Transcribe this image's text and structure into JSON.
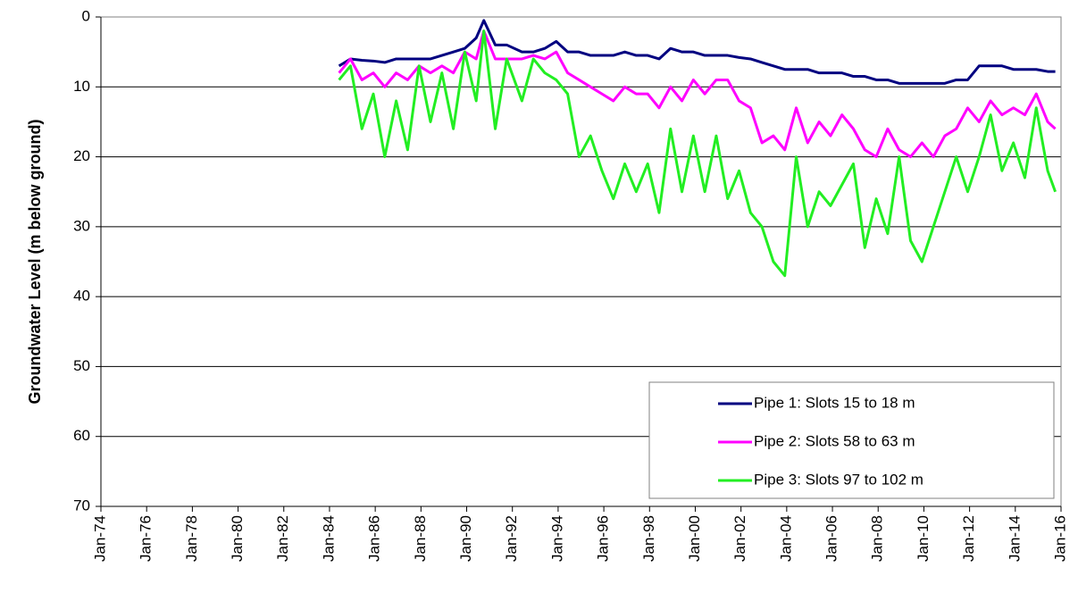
{
  "chart_data": {
    "type": "line",
    "y_label": "Groundwater Level (m below ground)",
    "x": [
      "1984-06",
      "1984-12",
      "1985-06",
      "1985-12",
      "1986-06",
      "1986-12",
      "1987-06",
      "1987-12",
      "1988-06",
      "1988-12",
      "1989-06",
      "1989-12",
      "1990-06",
      "1990-10",
      "1991-04",
      "1991-10",
      "1992-06",
      "1992-12",
      "1993-06",
      "1993-12",
      "1994-06",
      "1994-12",
      "1995-06",
      "1995-12",
      "1996-06",
      "1996-12",
      "1997-06",
      "1997-12",
      "1998-06",
      "1998-12",
      "1999-06",
      "1999-12",
      "2000-06",
      "2000-12",
      "2001-06",
      "2001-12",
      "2002-06",
      "2002-12",
      "2003-06",
      "2003-12",
      "2004-06",
      "2004-12",
      "2005-06",
      "2005-12",
      "2006-06",
      "2006-12",
      "2007-06",
      "2007-12",
      "2008-06",
      "2008-12",
      "2009-06",
      "2009-12",
      "2010-06",
      "2010-12",
      "2011-06",
      "2011-12",
      "2012-06",
      "2012-12",
      "2013-06",
      "2013-12",
      "2014-06",
      "2014-12",
      "2015-06",
      "2015-10"
    ],
    "series": [
      {
        "name": "Pipe 1: Slots 15 to 18 m",
        "color": "#000080",
        "values": [
          7,
          6,
          6.2,
          6.3,
          6.5,
          6,
          6,
          6,
          6,
          5.5,
          5,
          4.5,
          3,
          0.5,
          4,
          4,
          5,
          5,
          4.5,
          3.5,
          5,
          5,
          5.5,
          5.5,
          5.5,
          5,
          5.5,
          5.5,
          6,
          4.5,
          5,
          5,
          5.5,
          5.5,
          5.5,
          5.8,
          6,
          6.5,
          7,
          7.5,
          7.5,
          7.5,
          8,
          8,
          8,
          8.5,
          8.5,
          9,
          9,
          9.5,
          9.5,
          9.5,
          9.5,
          9.5,
          9,
          9,
          7,
          7,
          7,
          7.5,
          7.5,
          7.5,
          7.8,
          7.8
        ]
      },
      {
        "name": "Pipe 2: Slots 58 to 63 m",
        "color": "#ff00ff",
        "values": [
          8,
          6,
          9,
          8,
          10,
          8,
          9,
          7,
          8,
          7,
          8,
          5,
          6,
          2,
          6,
          6,
          6,
          5.5,
          6,
          5,
          8,
          9,
          10,
          11,
          12,
          10,
          11,
          11,
          13,
          10,
          12,
          9,
          11,
          9,
          9,
          12,
          13,
          18,
          17,
          19,
          13,
          18,
          15,
          17,
          14,
          16,
          19,
          20,
          16,
          19,
          20,
          18,
          20,
          17,
          16,
          13,
          15,
          12,
          14,
          13,
          14,
          11,
          15,
          16
        ]
      },
      {
        "name": "Pipe 3: Slots 97 to 102 m",
        "color": "#22ee22",
        "values": [
          9,
          7,
          16,
          11,
          20,
          12,
          19,
          7,
          15,
          8,
          16,
          5,
          12,
          2,
          16,
          6,
          12,
          6,
          8,
          9,
          11,
          20,
          17,
          22,
          26,
          21,
          25,
          21,
          28,
          16,
          25,
          17,
          25,
          17,
          26,
          22,
          28,
          30,
          35,
          37,
          20,
          30,
          25,
          27,
          24,
          21,
          33,
          26,
          31,
          20,
          32,
          35,
          30,
          25,
          20,
          25,
          20,
          14,
          22,
          18,
          23,
          13,
          22,
          25
        ]
      }
    ],
    "xlim": [
      "1974-01",
      "2016-01"
    ],
    "xticks": [
      {
        "value": "1974-01",
        "label": "Jan-74"
      },
      {
        "value": "1976-01",
        "label": "Jan-76"
      },
      {
        "value": "1978-01",
        "label": "Jan-78"
      },
      {
        "value": "1980-01",
        "label": "Jan-80"
      },
      {
        "value": "1982-01",
        "label": "Jan-82"
      },
      {
        "value": "1984-01",
        "label": "Jan-84"
      },
      {
        "value": "1986-01",
        "label": "Jan-86"
      },
      {
        "value": "1988-01",
        "label": "Jan-88"
      },
      {
        "value": "1990-01",
        "label": "Jan-90"
      },
      {
        "value": "1992-01",
        "label": "Jan-92"
      },
      {
        "value": "1994-01",
        "label": "Jan-94"
      },
      {
        "value": "1996-01",
        "label": "Jan-96"
      },
      {
        "value": "1998-01",
        "label": "Jan-98"
      },
      {
        "value": "2000-01",
        "label": "Jan-00"
      },
      {
        "value": "2002-01",
        "label": "Jan-02"
      },
      {
        "value": "2004-01",
        "label": "Jan-04"
      },
      {
        "value": "2006-01",
        "label": "Jan-06"
      },
      {
        "value": "2008-01",
        "label": "Jan-08"
      },
      {
        "value": "2010-01",
        "label": "Jan-10"
      },
      {
        "value": "2012-01",
        "label": "Jan-12"
      },
      {
        "value": "2014-01",
        "label": "Jan-14"
      },
      {
        "value": "2016-01",
        "label": "Jan-16"
      }
    ],
    "ylim": [
      0,
      70
    ],
    "y_inverted": true,
    "yticks": [
      0,
      10,
      20,
      30,
      40,
      50,
      60,
      70
    ],
    "grid": true,
    "legend": "lower right"
  }
}
